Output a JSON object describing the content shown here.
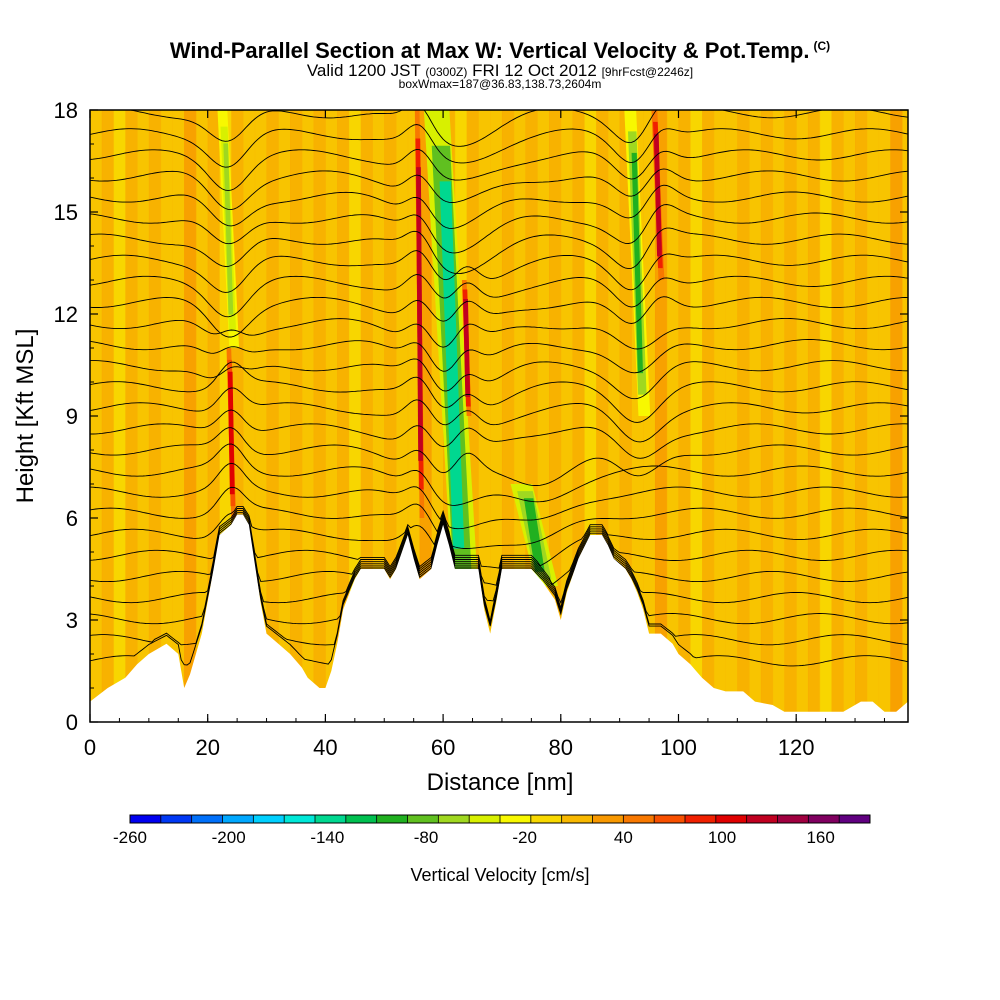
{
  "title": {
    "main": "Wind-Parallel Section at Max W: Vertical Velocity & Pot.Temp.",
    "copyright": "(C)",
    "valid_prefix": "Valid 1200 JST",
    "valid_utc": "(0300Z)",
    "valid_date": "FRI 12 Oct 2012",
    "forecast": "[9hrFcst@2246z]",
    "box": "boxWmax=187@36.83,138.73,2604m"
  },
  "chart_data": {
    "type": "heatmap",
    "xlabel": "Distance [nm]",
    "ylabel": "Height [Kft MSL]",
    "xlim": [
      0,
      139
    ],
    "ylim": [
      0,
      18
    ],
    "x_ticks": [
      "0",
      "20",
      "40",
      "60",
      "80",
      "100",
      "120"
    ],
    "y_ticks": [
      "0",
      "3",
      "6",
      "9",
      "12",
      "15",
      "18"
    ],
    "colorbar": {
      "label": "Vertical Velocity [cm/s]",
      "range": [
        -260,
        190
      ],
      "tick_labels": [
        "-260",
        "-200",
        "-140",
        "-80",
        "-20",
        "40",
        "100",
        "160"
      ],
      "colors": [
        "#0000f0",
        "#0038f5",
        "#0070fa",
        "#00a8ff",
        "#00d0ff",
        "#00e8d8",
        "#00d890",
        "#00c050",
        "#20b020",
        "#60c020",
        "#a0d820",
        "#d8f000",
        "#f8f800",
        "#f8d800",
        "#f8b800",
        "#f89800",
        "#f87800",
        "#f85000",
        "#f02000",
        "#e00000",
        "#c00020",
        "#a00040",
        "#800060",
        "#600080"
      ]
    },
    "features": [
      {
        "kind": "downdraft",
        "x_from": 55,
        "x_to": 68,
        "top_kft": 18,
        "bottom_kft": 3,
        "min_cm_s": -140
      },
      {
        "kind": "downdraft",
        "x_from": 90,
        "x_to": 96,
        "top_kft": 18,
        "bottom_kft": 9,
        "min_cm_s": -100
      },
      {
        "kind": "downdraft",
        "x_from": 70,
        "x_to": 81,
        "top_kft": 7,
        "bottom_kft": 4,
        "min_cm_s": -110
      },
      {
        "kind": "downdraft",
        "x_from": 21,
        "x_to": 26,
        "top_kft": 18,
        "bottom_kft": 11,
        "min_cm_s": -60
      },
      {
        "kind": "updraft",
        "x_from": 55,
        "x_to": 57,
        "top_kft": 18,
        "bottom_kft": 6,
        "max_cm_s": 130
      },
      {
        "kind": "updraft",
        "x_from": 63,
        "x_to": 65,
        "top_kft": 13,
        "bottom_kft": 9,
        "max_cm_s": 120
      },
      {
        "kind": "updraft",
        "x_from": 95,
        "x_to": 98,
        "top_kft": 18,
        "bottom_kft": 13,
        "max_cm_s": 130
      },
      {
        "kind": "updraft",
        "x_from": 23,
        "x_to": 25,
        "top_kft": 11,
        "bottom_kft": 6,
        "max_cm_s": 100
      }
    ],
    "terrain": [
      {
        "x": 0,
        "y": 0.6
      },
      {
        "x": 3,
        "y": 1.0
      },
      {
        "x": 6,
        "y": 1.3
      },
      {
        "x": 8,
        "y": 1.7
      },
      {
        "x": 10,
        "y": 2.0
      },
      {
        "x": 13,
        "y": 2.3
      },
      {
        "x": 15,
        "y": 2.0
      },
      {
        "x": 16,
        "y": 1.0
      },
      {
        "x": 17,
        "y": 1.4
      },
      {
        "x": 19,
        "y": 2.6
      },
      {
        "x": 21,
        "y": 4.5
      },
      {
        "x": 22,
        "y": 5.5
      },
      {
        "x": 24,
        "y": 5.8
      },
      {
        "x": 25,
        "y": 6.1
      },
      {
        "x": 26,
        "y": 6.1
      },
      {
        "x": 27,
        "y": 5.8
      },
      {
        "x": 29,
        "y": 3.5
      },
      {
        "x": 30,
        "y": 2.6
      },
      {
        "x": 32,
        "y": 2.3
      },
      {
        "x": 34,
        "y": 2.0
      },
      {
        "x": 36,
        "y": 1.6
      },
      {
        "x": 37,
        "y": 1.3
      },
      {
        "x": 39,
        "y": 1.0
      },
      {
        "x": 40,
        "y": 1.0
      },
      {
        "x": 41,
        "y": 1.5
      },
      {
        "x": 42,
        "y": 2.3
      },
      {
        "x": 43,
        "y": 3.3
      },
      {
        "x": 45,
        "y": 4.2
      },
      {
        "x": 46,
        "y": 4.5
      },
      {
        "x": 50,
        "y": 4.5
      },
      {
        "x": 51,
        "y": 4.2
      },
      {
        "x": 52,
        "y": 4.5
      },
      {
        "x": 53,
        "y": 5.0
      },
      {
        "x": 54,
        "y": 5.5
      },
      {
        "x": 55,
        "y": 4.8
      },
      {
        "x": 56,
        "y": 4.2
      },
      {
        "x": 58,
        "y": 4.5
      },
      {
        "x": 59,
        "y": 5.2
      },
      {
        "x": 60,
        "y": 5.8
      },
      {
        "x": 61,
        "y": 5.2
      },
      {
        "x": 62,
        "y": 4.5
      },
      {
        "x": 66,
        "y": 4.5
      },
      {
        "x": 67,
        "y": 3.3
      },
      {
        "x": 68,
        "y": 2.6
      },
      {
        "x": 69,
        "y": 3.5
      },
      {
        "x": 70,
        "y": 4.5
      },
      {
        "x": 74,
        "y": 4.5
      },
      {
        "x": 75,
        "y": 4.5
      },
      {
        "x": 77,
        "y": 4.1
      },
      {
        "x": 79,
        "y": 3.6
      },
      {
        "x": 80,
        "y": 3.0
      },
      {
        "x": 81,
        "y": 3.8
      },
      {
        "x": 83,
        "y": 4.8
      },
      {
        "x": 85,
        "y": 5.5
      },
      {
        "x": 87,
        "y": 5.5
      },
      {
        "x": 88,
        "y": 5.2
      },
      {
        "x": 89,
        "y": 4.8
      },
      {
        "x": 91,
        "y": 4.5
      },
      {
        "x": 92,
        "y": 4.2
      },
      {
        "x": 93,
        "y": 3.8
      },
      {
        "x": 94,
        "y": 3.3
      },
      {
        "x": 95,
        "y": 2.6
      },
      {
        "x": 97,
        "y": 2.6
      },
      {
        "x": 99,
        "y": 2.3
      },
      {
        "x": 100,
        "y": 2.0
      },
      {
        "x": 102,
        "y": 1.7
      },
      {
        "x": 103,
        "y": 1.5
      },
      {
        "x": 104,
        "y": 1.3
      },
      {
        "x": 106,
        "y": 1.0
      },
      {
        "x": 108,
        "y": 0.9
      },
      {
        "x": 111,
        "y": 0.9
      },
      {
        "x": 113,
        "y": 0.6
      },
      {
        "x": 116,
        "y": 0.5
      },
      {
        "x": 118,
        "y": 0.3
      },
      {
        "x": 128,
        "y": 0.3
      },
      {
        "x": 131,
        "y": 0.6
      },
      {
        "x": 133,
        "y": 0.6
      },
      {
        "x": 135,
        "y": 0.3
      },
      {
        "x": 137,
        "y": 0.3
      },
      {
        "x": 139,
        "y": 0.6
      }
    ],
    "isentropes": {
      "count": 27,
      "base_kft": 1.8,
      "spacing_kft": 0.62
    }
  }
}
